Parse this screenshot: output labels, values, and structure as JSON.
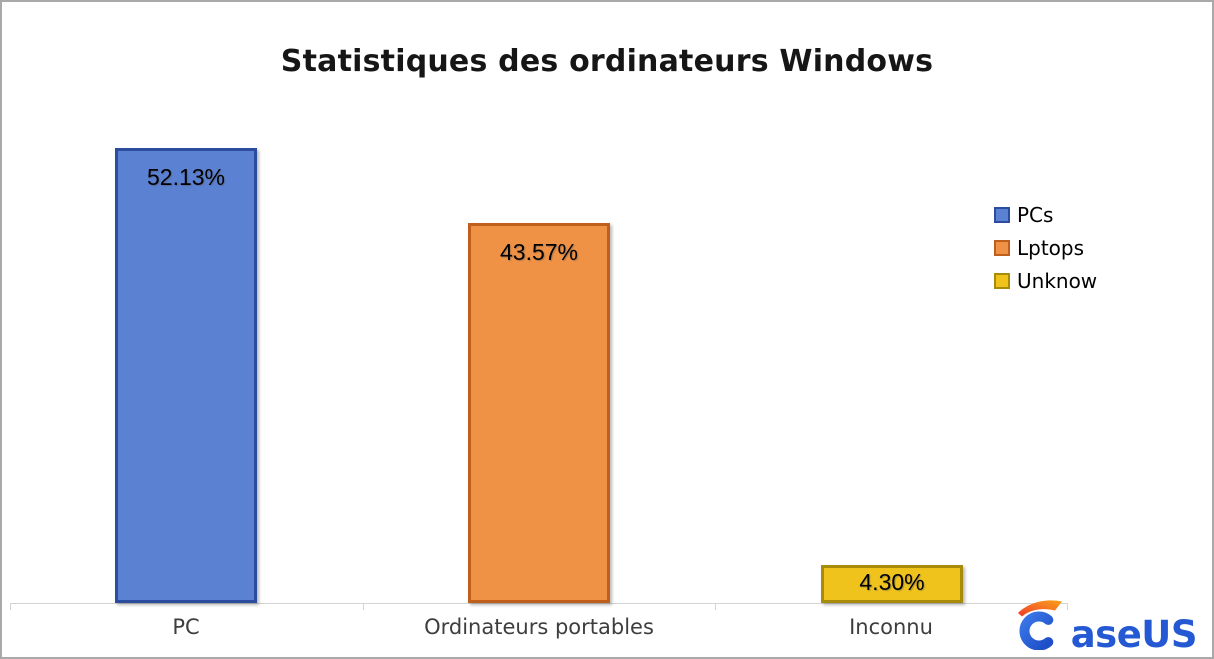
{
  "frame": {
    "background": "#ffffff",
    "border_color": "#a9a9a9"
  },
  "chart_data": {
    "type": "bar",
    "title": "Statistiques des ordinateurs Windows",
    "categories": [
      "PC",
      "Ordinateurs portables",
      "Inconnu"
    ],
    "values": [
      52.13,
      43.57,
      4.3
    ],
    "value_labels": [
      "52.13%",
      "43.57%",
      "4.30%"
    ],
    "series": [
      {
        "name": "PCs",
        "fill": "#5b81d2",
        "border": "#2c4d9e"
      },
      {
        "name": "Lptops",
        "fill": "#ef9245",
        "border": "#c05f1b"
      },
      {
        "name": "Unknow",
        "fill": "#f0c31c",
        "border": "#a98b0a"
      }
    ],
    "legend_position": "right",
    "y_axis_visible": false,
    "grid": false,
    "axis_line_color": "#d4d4d4",
    "xlabel": "",
    "ylabel": ""
  },
  "brand": {
    "name": "EaseUS",
    "wordmark_rest": "aseUS",
    "blue": "#2459d3",
    "orange_start": "#ef3b2a",
    "orange_end": "#f9a11b"
  }
}
